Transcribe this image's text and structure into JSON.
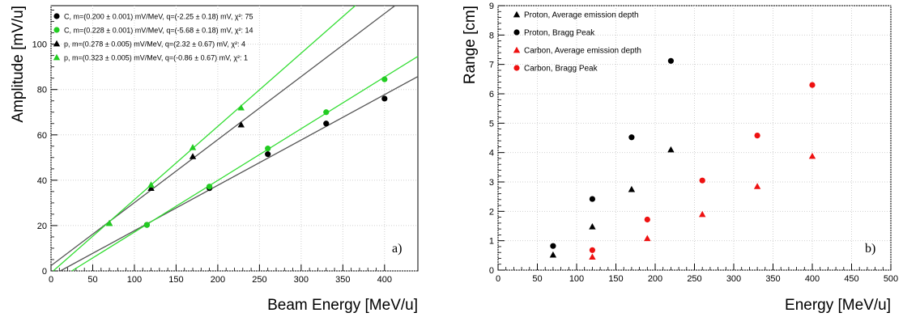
{
  "chart_data": [
    {
      "type": "scatter",
      "panel_label": "a)",
      "xlabel": "Beam Energy [MeV/u]",
      "ylabel": "Amplitude [mV/u]",
      "xlim": [
        0,
        440
      ],
      "ylim": [
        0,
        117
      ],
      "xticks": [
        0,
        50,
        100,
        150,
        200,
        250,
        300,
        350,
        400
      ],
      "yticks": [
        0,
        20,
        40,
        60,
        80,
        100
      ],
      "grid": true,
      "legend_position": "top-left",
      "series": [
        {
          "name": "C, m=(0.200 ± 0.001) mV/MeV, q=(-2.25 ± 0.18) mV, χ²: 75",
          "marker": "circle",
          "color": "#000000",
          "x": [
            115,
            190,
            260,
            330,
            400
          ],
          "y": [
            20.3,
            36.5,
            51.5,
            65,
            76
          ],
          "fit": {
            "m": 0.2,
            "q": -2.25,
            "color": "#555555"
          }
        },
        {
          "name": "C, m=(0.228 ± 0.001) mV/MeV, q=(-5.68 ± 0.18) mV, χ²: 14",
          "marker": "circle",
          "color": "#22cc22",
          "x": [
            115,
            190,
            260,
            330,
            400
          ],
          "y": [
            20.3,
            37.2,
            54,
            70,
            84.5
          ],
          "fit": {
            "m": 0.228,
            "q": -5.68,
            "color": "#33dd33"
          }
        },
        {
          "name": "p, m=(0.278 ± 0.005) mV/MeV, q=(2.32 ± 0.67) mV, χ²: 4",
          "marker": "triangle",
          "color": "#000000",
          "x": [
            70,
            120,
            170,
            228
          ],
          "y": [
            21,
            36.5,
            50.5,
            64.5
          ],
          "fit": {
            "m": 0.278,
            "q": 2.32,
            "color": "#555555"
          }
        },
        {
          "name": "p, m=(0.323 ± 0.005) mV/MeV, q=(-0.86 ± 0.67) mV, χ²: 1",
          "marker": "triangle",
          "color": "#22cc22",
          "x": [
            70,
            120,
            170,
            228
          ],
          "y": [
            21,
            38,
            54.5,
            72
          ],
          "fit": {
            "m": 0.323,
            "q": -0.86,
            "color": "#33dd33"
          }
        }
      ]
    },
    {
      "type": "scatter",
      "panel_label": "b)",
      "xlabel": "Energy [MeV/u]",
      "ylabel": "Range [cm]",
      "xlim": [
        0,
        500
      ],
      "ylim": [
        0,
        9
      ],
      "xticks": [
        0,
        50,
        100,
        150,
        200,
        250,
        300,
        350,
        400,
        450,
        500
      ],
      "yticks": [
        0,
        1,
        2,
        3,
        4,
        5,
        6,
        7,
        8,
        9
      ],
      "grid": true,
      "legend_position": "top-left",
      "series": [
        {
          "name": "Proton, Average emission depth",
          "marker": "triangle",
          "color": "#000000",
          "x": [
            70,
            120,
            170,
            220
          ],
          "y": [
            0.52,
            1.48,
            2.75,
            4.1
          ]
        },
        {
          "name": "Proton, Bragg Peak",
          "marker": "circle",
          "color": "#000000",
          "x": [
            70,
            120,
            170,
            220
          ],
          "y": [
            0.82,
            2.42,
            4.52,
            7.12
          ]
        },
        {
          "name": "Carbon, Average emission depth",
          "marker": "triangle",
          "color": "#ee1111",
          "x": [
            120,
            190,
            260,
            330,
            400
          ],
          "y": [
            0.45,
            1.08,
            1.9,
            2.85,
            3.88
          ]
        },
        {
          "name": "Carbon, Bragg Peak",
          "marker": "circle",
          "color": "#ee1111",
          "x": [
            120,
            190,
            260,
            330,
            400
          ],
          "y": [
            0.68,
            1.72,
            3.05,
            4.58,
            6.3
          ]
        }
      ]
    }
  ]
}
